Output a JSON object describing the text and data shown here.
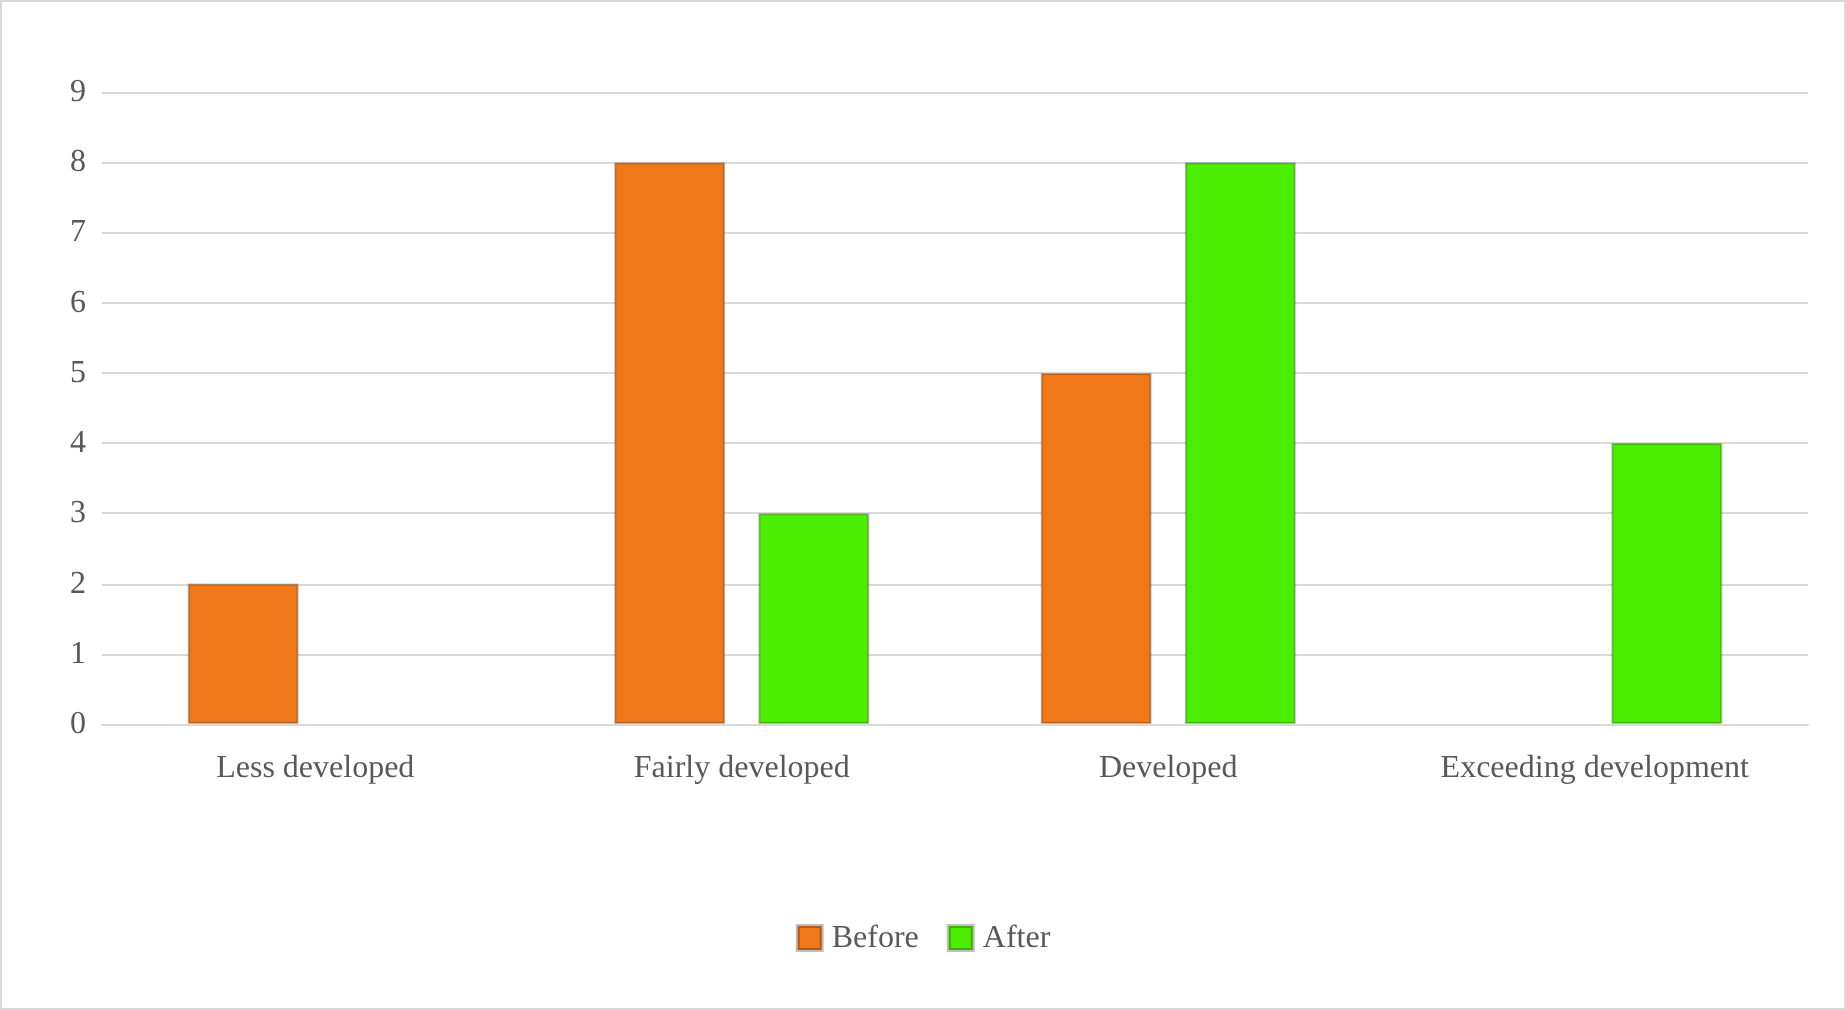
{
  "chart_data": {
    "type": "bar",
    "categories": [
      "Less developed",
      "Fairly developed",
      "Developed",
      "Exceeding development"
    ],
    "series": [
      {
        "name": "Before",
        "color": "#f07818",
        "values": [
          2,
          8,
          5,
          null
        ]
      },
      {
        "name": "After",
        "color": "#4cee00",
        "values": [
          null,
          3,
          8,
          4
        ]
      }
    ],
    "ylim": [
      0,
      9
    ],
    "yticks": [
      0,
      1,
      2,
      3,
      4,
      5,
      6,
      7,
      8,
      9
    ],
    "grid": "y",
    "legend": "bottom"
  }
}
